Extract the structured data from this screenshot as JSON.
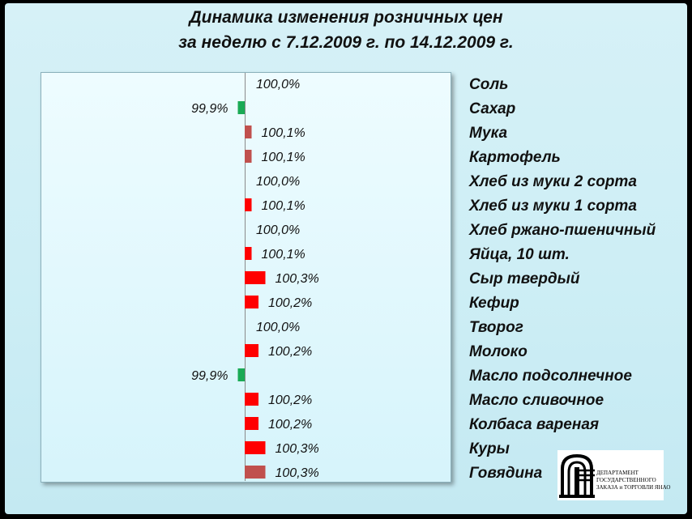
{
  "title_line1": "Динамика изменения розничных цен",
  "title_line2": "за неделю с 7.12.2009 г. по 14.12.2009 г.",
  "chart_data": {
    "type": "bar",
    "orientation": "horizontal",
    "baseline": 100.0,
    "grid": false,
    "categories": [
      "Соль",
      "Сахар",
      "Мука",
      "Картофель",
      "Хлеб из муки 2 сорта",
      "Хлеб из муки 1 сорта",
      "Хлеб ржано-пшеничный",
      "Яйца, 10 шт.",
      "Сыр твердый",
      "Кефир",
      "Творог",
      "Молоко",
      "Масло подсолнечное",
      "Масло сливочное",
      "Колбаса вареная",
      "Куры",
      "Говядина"
    ],
    "values": [
      100.0,
      99.9,
      100.1,
      100.1,
      100.0,
      100.1,
      100.0,
      100.1,
      100.3,
      100.2,
      100.0,
      100.2,
      99.9,
      100.2,
      100.2,
      100.3,
      100.3
    ],
    "value_labels": [
      "100,0%",
      "99,9%",
      "100,1%",
      "100,1%",
      "100,0%",
      "100,1%",
      "100,0%",
      "100,1%",
      "100,3%",
      "100,2%",
      "100,0%",
      "100,2%",
      "99,9%",
      "100,2%",
      "100,2%",
      "100,3%",
      "100,3%"
    ],
    "bar_colors": [
      "#ff0000",
      "#1aaa55",
      "#c0504d",
      "#c0504d",
      "#ff0000",
      "#ff0000",
      "#ff0000",
      "#ff0000",
      "#ff0000",
      "#ff0000",
      "#ff0000",
      "#ff0000",
      "#1aaa55",
      "#ff0000",
      "#ff0000",
      "#ff0000",
      "#c0504d"
    ]
  },
  "logo": {
    "line1": "ДЕПАРТАМЕНТ",
    "line2": "ГОСУДАРСТВЕННОГО",
    "line3": "ЗАКАЗА и ТОРГОВЛИ ЯНАО"
  }
}
